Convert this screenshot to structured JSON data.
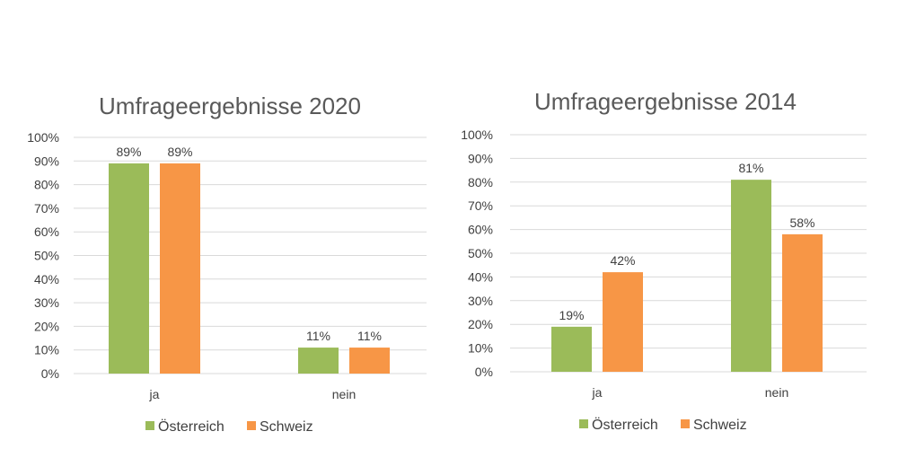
{
  "colors": {
    "oesterreich": "#9bbb59",
    "schweiz": "#f79646"
  },
  "chart_data": [
    {
      "type": "bar",
      "title": "Umfrageergebnisse 2020",
      "categories": [
        "ja",
        "nein"
      ],
      "series": [
        {
          "name": "Österreich",
          "values": [
            89,
            11
          ],
          "labels": [
            "89%",
            "11%"
          ]
        },
        {
          "name": "Schweiz",
          "values": [
            89,
            11
          ],
          "labels": [
            "89%",
            "11%"
          ]
        }
      ],
      "ylim": [
        0,
        100
      ],
      "yticks": [
        "0%",
        "10%",
        "20%",
        "30%",
        "40%",
        "50%",
        "60%",
        "70%",
        "80%",
        "90%",
        "100%"
      ],
      "legend": [
        "Österreich",
        "Schweiz"
      ],
      "legend_position": "bottom"
    },
    {
      "type": "bar",
      "title": "Umfrageergebnisse 2014",
      "categories": [
        "ja",
        "nein"
      ],
      "series": [
        {
          "name": "Österreich",
          "values": [
            19,
            81
          ],
          "labels": [
            "19%",
            "81%"
          ]
        },
        {
          "name": "Schweiz",
          "values": [
            42,
            58
          ],
          "labels": [
            "42%",
            "58%"
          ]
        }
      ],
      "ylim": [
        0,
        100
      ],
      "yticks": [
        "0%",
        "10%",
        "20%",
        "30%",
        "40%",
        "50%",
        "60%",
        "70%",
        "80%",
        "90%",
        "100%"
      ],
      "legend": [
        "Österreich",
        "Schweiz"
      ],
      "legend_position": "bottom"
    }
  ]
}
